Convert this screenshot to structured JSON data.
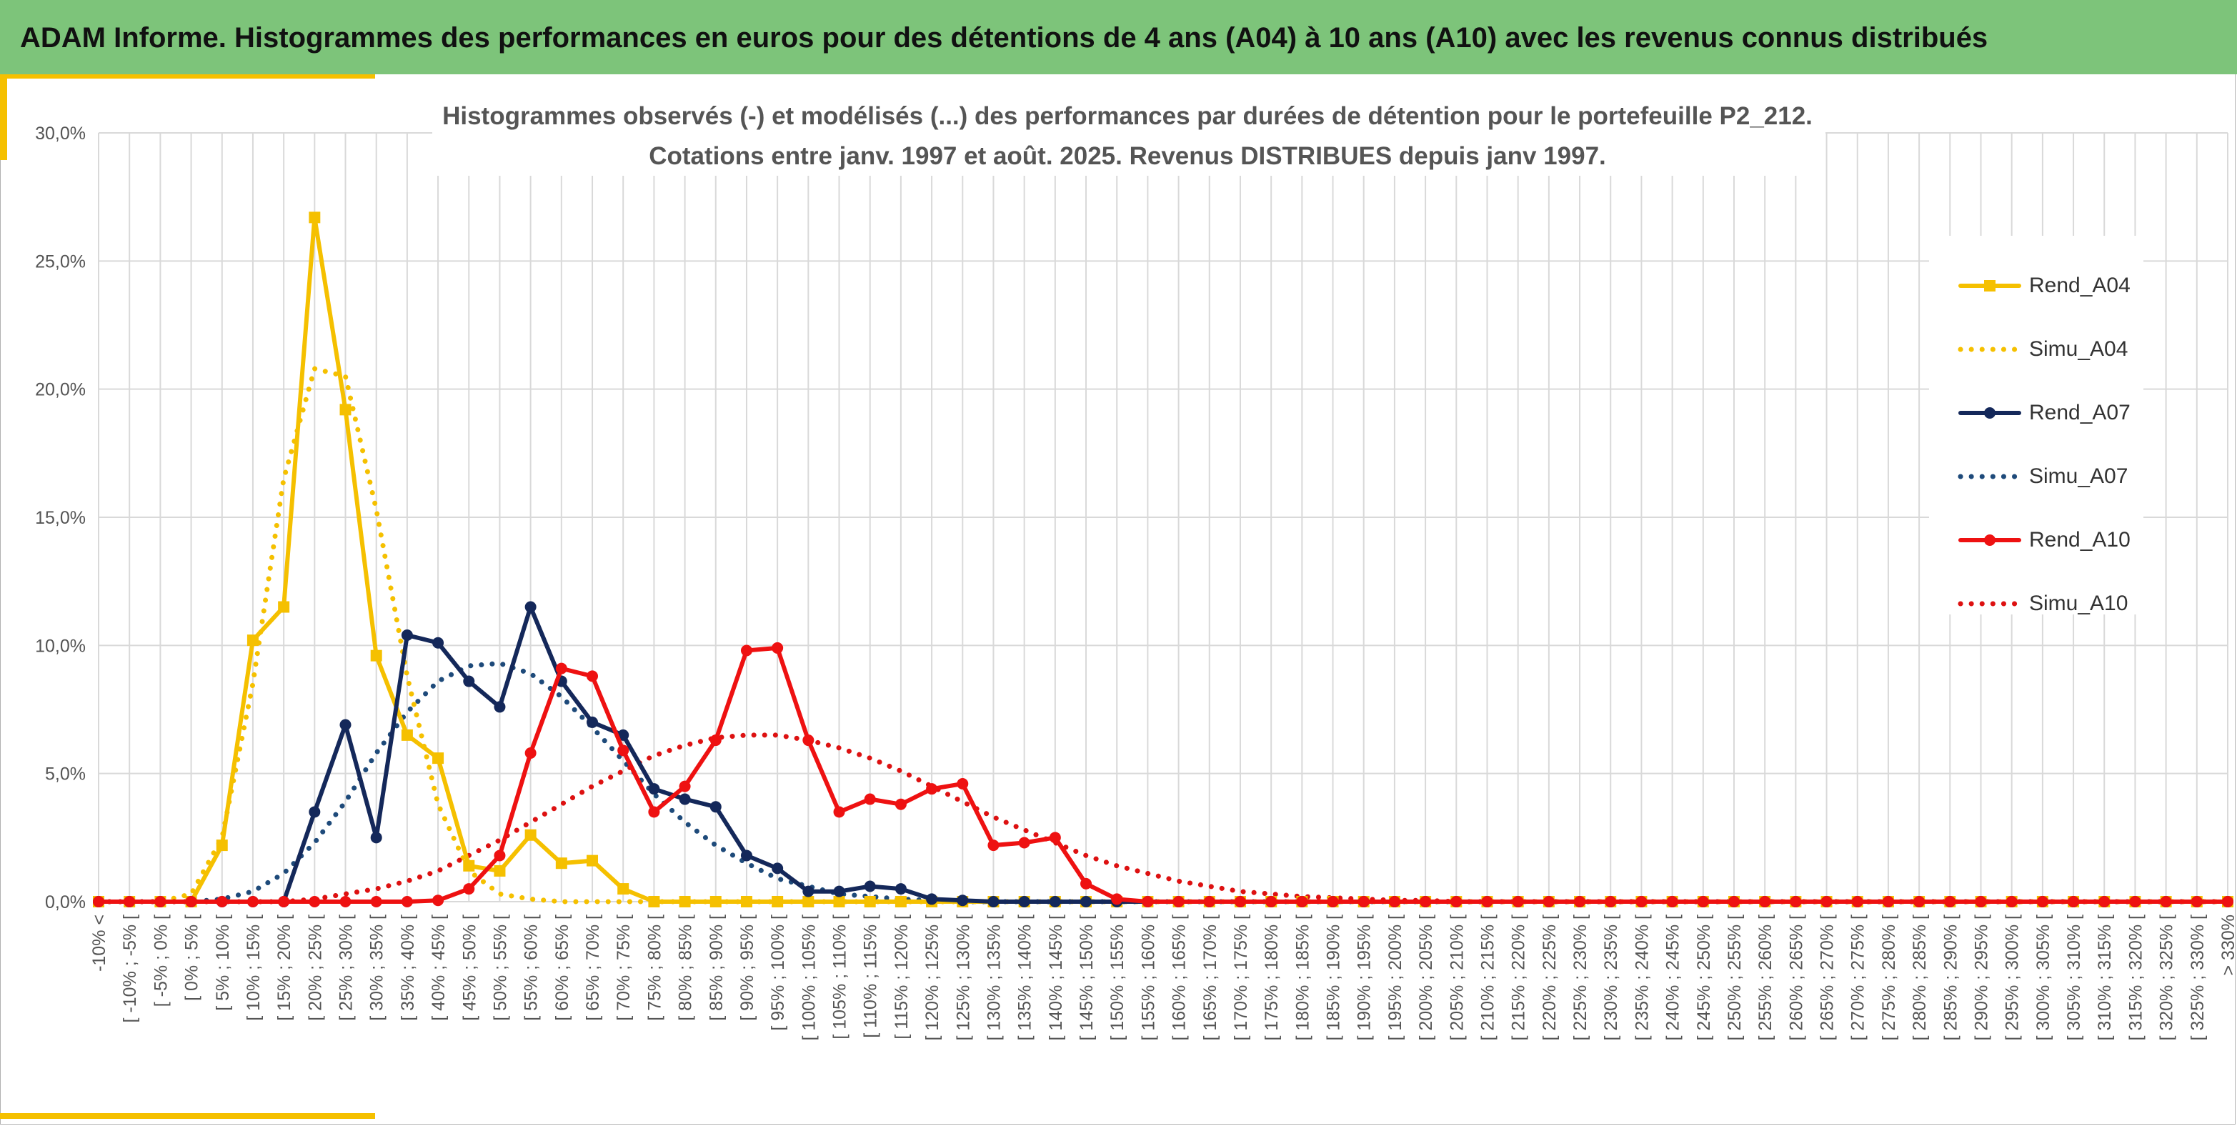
{
  "header": {
    "title": "ADAM Informe. Histogrammes des performances en euros pour des détentions de 4 ans (A04) à 10 ans (A10) avec les revenus connus distribués"
  },
  "colors": {
    "header_bg": "#7dc47a",
    "accent": "#f5c000",
    "grid": "#d9d9d9"
  },
  "chart_data": {
    "type": "line",
    "title": "Histogrammes observés (-) et modélisés (...) des performances par durées de détention pour le portefeuille P2_212.",
    "subtitle": "Cotations entre janv. 1997 et août. 2025. Revenus DISTRIBUES depuis janv 1997.",
    "xlabel": "",
    "ylabel": "",
    "ylim": [
      0,
      30
    ],
    "yticks": [
      "0,0%",
      "5,0%",
      "10,0%",
      "15,0%",
      "20,0%",
      "25,0%",
      "30,0%"
    ],
    "grid": true,
    "legend_position": "right",
    "categories": [
      "-10% <",
      "[ -10% ; -5% [",
      "[ -5% ; 0% [",
      "[ 0% ; 5% [",
      "[ 5% ; 10% [",
      "[ 10% ; 15% [",
      "[ 15% ; 20% [",
      "[ 20% ; 25% [",
      "[ 25% ; 30% [",
      "[ 30% ; 35% [",
      "[ 35% ; 40% [",
      "[ 40% ; 45% [",
      "[ 45% ; 50% [",
      "[ 50% ; 55% [",
      "[ 55% ; 60% [",
      "[ 60% ; 65% [",
      "[ 65% ; 70% [",
      "[ 70% ; 75% [",
      "[ 75% ; 80% [",
      "[ 80% ; 85% [",
      "[ 85% ; 90% [",
      "[ 90% ; 95% [",
      "[ 95% ; 100% [",
      "[ 100% ; 105% [",
      "[ 105% ; 110% [",
      "[ 110% ; 115% [",
      "[ 115% ; 120% [",
      "[ 120% ; 125% [",
      "[ 125% ; 130% [",
      "[ 130% ; 135% [",
      "[ 135% ; 140% [",
      "[ 140% ; 145% [",
      "[ 145% ; 150% [",
      "[ 150% ; 155% [",
      "[ 155% ; 160% [",
      "[ 160% ; 165% [",
      "[ 165% ; 170% [",
      "[ 170% ; 175% [",
      "[ 175% ; 180% [",
      "[ 180% ; 185% [",
      "[ 185% ; 190% [",
      "[ 190% ; 195% [",
      "[ 195% ; 200% [",
      "[ 200% ; 205% [",
      "[ 205% ; 210% [",
      "[ 210% ; 215% [",
      "[ 215% ; 220% [",
      "[ 220% ; 225% [",
      "[ 225% ; 230% [",
      "[ 230% ; 235% [",
      "[ 235% ; 240% [",
      "[ 240% ; 245% [",
      "[ 245% ; 250% [",
      "[ 250% ; 255% [",
      "[ 255% ; 260% [",
      "[ 260% ; 265% [",
      "[ 265% ; 270% [",
      "[ 270% ; 275% [",
      "[ 275% ; 280% [",
      "[ 280% ; 285% [",
      "[ 285% ; 290% [",
      "[ 290% ; 295% [",
      "[ 295% ; 300% [",
      "[ 300% ; 305% [",
      "[ 305% ; 310% [",
      "[ 310% ; 315% [",
      "[ 315% ; 320% [",
      "[ 320% ; 325% [",
      "[ 325% ; 330% [",
      "> 330%"
    ],
    "series": [
      {
        "name": "Rend_A04",
        "style": "solid",
        "marker": "square",
        "color": "#f5c000",
        "values": [
          0,
          0,
          0,
          0,
          2.2,
          10.2,
          11.5,
          26.7,
          19.2,
          9.6,
          6.5,
          5.6,
          1.4,
          1.2,
          2.6,
          1.5,
          1.6,
          0.5,
          0,
          0,
          0,
          0,
          0,
          0,
          0,
          0,
          0,
          0,
          0,
          0,
          0,
          0,
          0,
          0,
          0,
          0,
          0,
          0,
          0,
          0,
          0,
          0,
          0,
          0,
          0,
          0,
          0,
          0,
          0,
          0,
          0,
          0,
          0,
          0,
          0,
          0,
          0,
          0,
          0,
          0,
          0,
          0,
          0,
          0,
          0,
          0,
          0,
          0,
          0,
          0
        ]
      },
      {
        "name": "Simu_A04",
        "style": "dotted",
        "marker": "none",
        "color": "#f5c000",
        "values": [
          0,
          0,
          0,
          0.3,
          2.5,
          8.5,
          16.5,
          20.8,
          20.5,
          15.3,
          8.8,
          3.8,
          1.2,
          0.3,
          0.1,
          0,
          0,
          0,
          0,
          0,
          0,
          0,
          0,
          0,
          0,
          0,
          0,
          0,
          0,
          0,
          0,
          0,
          0,
          0,
          0,
          0,
          0,
          0,
          0,
          0,
          0,
          0,
          0,
          0,
          0,
          0,
          0,
          0,
          0,
          0,
          0,
          0,
          0,
          0,
          0,
          0,
          0,
          0,
          0,
          0,
          0,
          0,
          0,
          0,
          0,
          0,
          0,
          0,
          0,
          0
        ]
      },
      {
        "name": "Rend_A07",
        "style": "solid",
        "marker": "circle",
        "color": "#14285a",
        "values": [
          0,
          0,
          0,
          0,
          0,
          0,
          0,
          3.5,
          6.9,
          2.5,
          10.4,
          10.1,
          8.6,
          7.6,
          11.5,
          8.6,
          7.0,
          6.5,
          4.4,
          4.0,
          3.7,
          1.8,
          1.3,
          0.4,
          0.4,
          0.6,
          0.5,
          0.1,
          0.05,
          0,
          0,
          0,
          0,
          0,
          0,
          0,
          0,
          0,
          0,
          0,
          0,
          0,
          0,
          0,
          0,
          0,
          0,
          0,
          0,
          0,
          0,
          0,
          0,
          0,
          0,
          0,
          0,
          0,
          0,
          0,
          0,
          0,
          0,
          0,
          0,
          0,
          0,
          0,
          0,
          0
        ]
      },
      {
        "name": "Simu_A07",
        "style": "dotted",
        "marker": "none",
        "color": "#1e4a7a",
        "values": [
          0,
          0,
          0,
          0,
          0.1,
          0.4,
          1.1,
          2.3,
          3.9,
          5.8,
          7.4,
          8.6,
          9.2,
          9.3,
          8.9,
          8.0,
          6.8,
          5.5,
          4.2,
          3.1,
          2.2,
          1.5,
          0.9,
          0.6,
          0.3,
          0.2,
          0.1,
          0.05,
          0,
          0,
          0,
          0,
          0,
          0,
          0,
          0,
          0,
          0,
          0,
          0,
          0,
          0,
          0,
          0,
          0,
          0,
          0,
          0,
          0,
          0,
          0,
          0,
          0,
          0,
          0,
          0,
          0,
          0,
          0,
          0,
          0,
          0,
          0,
          0,
          0,
          0,
          0,
          0,
          0,
          0
        ]
      },
      {
        "name": "Rend_A10",
        "style": "solid",
        "marker": "circle",
        "color": "#ee1111",
        "values": [
          0,
          0,
          0,
          0,
          0,
          0,
          0,
          0,
          0,
          0,
          0,
          0.05,
          0.5,
          1.8,
          5.8,
          9.1,
          8.8,
          5.9,
          3.5,
          4.5,
          6.3,
          9.8,
          9.9,
          6.3,
          3.5,
          4.0,
          3.8,
          4.4,
          4.6,
          2.2,
          2.3,
          2.5,
          0.7,
          0.1,
          0,
          0,
          0,
          0,
          0,
          0,
          0,
          0,
          0,
          0,
          0,
          0,
          0,
          0,
          0,
          0,
          0,
          0,
          0,
          0,
          0,
          0,
          0,
          0,
          0,
          0,
          0,
          0,
          0,
          0,
          0,
          0,
          0,
          0,
          0,
          0
        ]
      },
      {
        "name": "Simu_A10",
        "style": "dotted",
        "marker": "none",
        "color": "#dd1111",
        "values": [
          0,
          0,
          0,
          0,
          0,
          0,
          0,
          0.1,
          0.3,
          0.5,
          0.8,
          1.2,
          1.8,
          2.4,
          3.1,
          3.8,
          4.5,
          5.1,
          5.7,
          6.1,
          6.4,
          6.5,
          6.5,
          6.3,
          6.0,
          5.6,
          5.1,
          4.5,
          3.9,
          3.3,
          2.8,
          2.3,
          1.8,
          1.4,
          1.1,
          0.8,
          0.6,
          0.4,
          0.3,
          0.2,
          0.15,
          0.1,
          0.05,
          0.05,
          0,
          0,
          0,
          0,
          0,
          0,
          0,
          0,
          0,
          0,
          0,
          0,
          0,
          0,
          0,
          0,
          0,
          0,
          0,
          0,
          0,
          0,
          0,
          0,
          0,
          0
        ]
      }
    ]
  }
}
